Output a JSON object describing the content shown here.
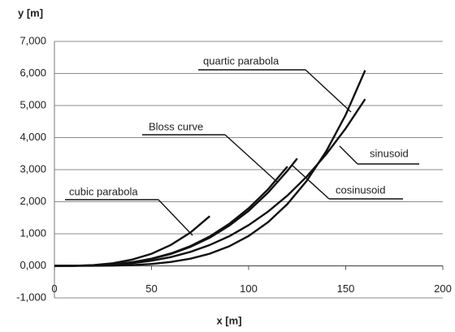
{
  "chart_data": {
    "type": "line",
    "xlabel": "x [m]",
    "ylabel": "y [m]",
    "xlim": [
      0,
      200
    ],
    "xticks": [
      0,
      50,
      100,
      150,
      200
    ],
    "ylim": [
      -1000,
      7000
    ],
    "yticks": [
      {
        "value": -1000,
        "label": "-1,000"
      },
      {
        "value": 0,
        "label": "0,000"
      },
      {
        "value": 1000,
        "label": "1,000"
      },
      {
        "value": 2000,
        "label": "2,000"
      },
      {
        "value": 3000,
        "label": "3,000"
      },
      {
        "value": 4000,
        "label": "4,000"
      },
      {
        "value": 5000,
        "label": "5,000"
      },
      {
        "value": 6000,
        "label": "6,000"
      },
      {
        "value": 7000,
        "label": "7,000"
      }
    ],
    "grid": true,
    "series": [
      {
        "name": "cubic parabola",
        "color": "#111111",
        "x": [
          0,
          10,
          20,
          30,
          40,
          50,
          60,
          70,
          80
        ],
        "values": [
          0,
          3,
          24,
          82,
          194,
          378,
          654,
          1038,
          1550
        ]
      },
      {
        "name": "Bloss curve",
        "color": "#111111",
        "x": [
          0,
          10,
          20,
          30,
          40,
          50,
          60,
          70,
          80,
          90,
          100,
          110,
          120
        ],
        "values": [
          0,
          2,
          14,
          48,
          115,
          224,
          388,
          616,
          919,
          1308,
          1794,
          2388,
          3100
        ]
      },
      {
        "name": "quartic parabola",
        "color": "#111111",
        "x": [
          0,
          10,
          20,
          30,
          40,
          50,
          60,
          70,
          80,
          90,
          100,
          110,
          120,
          130,
          140,
          150,
          160
        ],
        "values": [
          0,
          0.1,
          1.5,
          7.5,
          24,
          58,
          121,
          224,
          381,
          611,
          931,
          1363,
          1930,
          2658,
          3576,
          4712,
          6100
        ]
      },
      {
        "name": "sinusoid",
        "color": "#111111",
        "x": [
          0,
          10,
          20,
          30,
          40,
          50,
          60,
          70,
          80,
          90,
          100,
          110,
          120,
          130,
          140,
          150,
          160
        ],
        "values": [
          0,
          1.3,
          10,
          34,
          81,
          159,
          274,
          435,
          650,
          925,
          1270,
          1690,
          2194,
          2789,
          3484,
          4285,
          5200
        ]
      },
      {
        "name": "cosinusoid",
        "color": "#111111",
        "x": [
          0,
          10,
          20,
          30,
          40,
          50,
          60,
          70,
          80,
          90,
          100,
          110,
          120,
          125
        ],
        "values": [
          0,
          2,
          14,
          46,
          110,
          214,
          371,
          589,
          879,
          1252,
          1715,
          2283,
          2964,
          3350
        ]
      }
    ]
  }
}
